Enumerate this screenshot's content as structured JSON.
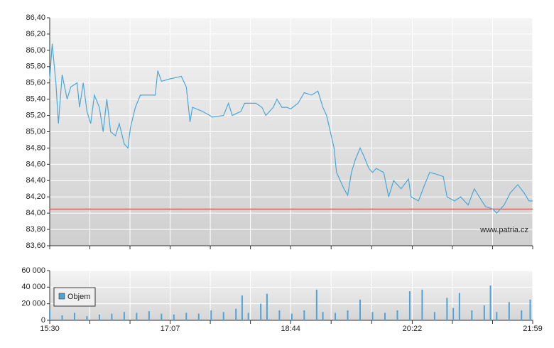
{
  "chart_data": [
    {
      "type": "line",
      "watermark": "www.patria.cz",
      "x": [
        "15:30",
        "15:32",
        "15:35",
        "15:37",
        "15:40",
        "15:44",
        "15:47",
        "15:52",
        "15:54",
        "15:57",
        "16:00",
        "16:03",
        "16:06",
        "16:10",
        "16:13",
        "16:16",
        "16:19",
        "16:23",
        "16:26",
        "16:30",
        "16:33",
        "16:35",
        "16:39",
        "16:43",
        "16:50",
        "16:55",
        "16:57",
        "17:00",
        "17:07",
        "17:16",
        "17:20",
        "17:23",
        "17:25",
        "17:33",
        "17:39",
        "17:41",
        "17:50",
        "17:54",
        "17:57",
        "18:04",
        "18:07",
        "18:16",
        "18:21",
        "18:24",
        "18:30",
        "18:33",
        "18:37",
        "18:41",
        "18:44",
        "18:50",
        "18:55",
        "19:01",
        "19:06",
        "19:10",
        "19:13",
        "19:16",
        "19:19",
        "19:21",
        "19:24",
        "19:27",
        "19:30",
        "19:33",
        "19:36",
        "19:40",
        "19:43",
        "19:47",
        "19:50",
        "19:53",
        "19:59",
        "20:03",
        "20:07",
        "20:13",
        "20:19",
        "20:21",
        "20:27",
        "20:32",
        "20:36",
        "20:41",
        "20:47",
        "20:50",
        "20:56",
        "21:01",
        "21:07",
        "21:12",
        "21:16",
        "21:21",
        "21:27",
        "21:30",
        "21:36",
        "21:41",
        "21:47",
        "21:52",
        "21:56",
        "21:59"
      ],
      "values": [
        85.65,
        86.08,
        85.6,
        85.1,
        85.7,
        85.4,
        85.55,
        85.6,
        85.3,
        85.6,
        85.25,
        85.1,
        85.45,
        85.3,
        85.0,
        85.4,
        85.0,
        84.95,
        85.1,
        84.85,
        84.8,
        85.05,
        85.3,
        85.45,
        85.45,
        85.45,
        85.75,
        85.62,
        85.65,
        85.68,
        85.55,
        85.12,
        85.3,
        85.25,
        85.2,
        85.18,
        85.2,
        85.35,
        85.2,
        85.25,
        85.35,
        85.35,
        85.3,
        85.2,
        85.3,
        85.4,
        85.3,
        85.3,
        85.28,
        85.35,
        85.48,
        85.45,
        85.5,
        85.3,
        85.2,
        85.0,
        84.8,
        84.5,
        84.4,
        84.3,
        84.22,
        84.5,
        84.65,
        84.8,
        84.7,
        84.55,
        84.5,
        84.55,
        84.5,
        84.2,
        84.4,
        84.3,
        84.42,
        84.2,
        84.15,
        84.35,
        84.5,
        84.48,
        84.45,
        84.2,
        84.15,
        84.2,
        84.1,
        84.3,
        84.2,
        84.08,
        84.05,
        84.0,
        84.1,
        84.25,
        84.35,
        84.25,
        84.15,
        84.15
      ],
      "color": "#4aa8d8",
      "reference_line": 84.05,
      "reference_color": "#d9534f",
      "xlim": [
        "15:30",
        "21:59"
      ],
      "ylim": [
        83.6,
        86.4
      ],
      "yticks": [
        {
          "value": 83.6,
          "label": "83,60"
        },
        {
          "value": 83.8,
          "label": "83,80"
        },
        {
          "value": 84.0,
          "label": "84,00"
        },
        {
          "value": 84.2,
          "label": "84,20"
        },
        {
          "value": 84.4,
          "label": "84,40"
        },
        {
          "value": 84.6,
          "label": "84,60"
        },
        {
          "value": 84.8,
          "label": "84,80"
        },
        {
          "value": 85.0,
          "label": "85,00"
        },
        {
          "value": 85.2,
          "label": "85,20"
        },
        {
          "value": 85.4,
          "label": "85,40"
        },
        {
          "value": 85.6,
          "label": "85,60"
        },
        {
          "value": 85.8,
          "label": "85,80"
        },
        {
          "value": 86.0,
          "label": "86,00"
        },
        {
          "value": 86.2,
          "label": "86,20"
        },
        {
          "value": 86.4,
          "label": "86,40"
        }
      ],
      "grid": true
    },
    {
      "type": "bar",
      "x": [
        "15:30",
        "15:40",
        "15:50",
        "16:00",
        "16:10",
        "16:20",
        "16:30",
        "16:40",
        "16:50",
        "17:00",
        "17:10",
        "17:20",
        "17:30",
        "17:40",
        "17:50",
        "18:00",
        "18:05",
        "18:10",
        "18:20",
        "18:25",
        "18:35",
        "18:45",
        "18:55",
        "19:05",
        "19:10",
        "19:20",
        "19:30",
        "19:40",
        "19:50",
        "20:00",
        "20:10",
        "20:20",
        "20:30",
        "20:40",
        "20:50",
        "20:55",
        "21:00",
        "21:10",
        "21:20",
        "21:25",
        "21:30",
        "21:40",
        "21:50",
        "21:57"
      ],
      "series": [
        {
          "name": "Objem",
          "color": "#4fa3d6",
          "values": [
            12000,
            6000,
            9000,
            5000,
            7000,
            8000,
            10000,
            9000,
            11000,
            8000,
            7000,
            9000,
            8000,
            12000,
            10000,
            14000,
            30000,
            9000,
            20000,
            32000,
            12000,
            8000,
            12000,
            37000,
            10000,
            9000,
            12000,
            25000,
            10000,
            9000,
            12000,
            35000,
            37000,
            10000,
            27000,
            15000,
            33000,
            12000,
            18000,
            42000,
            10000,
            22000,
            12000,
            25000
          ]
        }
      ],
      "xlim": [
        "15:30",
        "21:59"
      ],
      "xticks": [
        "15:30",
        "17:07",
        "18:44",
        "20:22",
        "21:59"
      ],
      "ylim": [
        0,
        60000
      ],
      "yticks": [
        0,
        {
          "value": 20000,
          "label": "20 000"
        },
        {
          "value": 40000,
          "label": "40 000"
        },
        {
          "value": 60000,
          "label": "60 000"
        }
      ],
      "grid": true
    }
  ]
}
